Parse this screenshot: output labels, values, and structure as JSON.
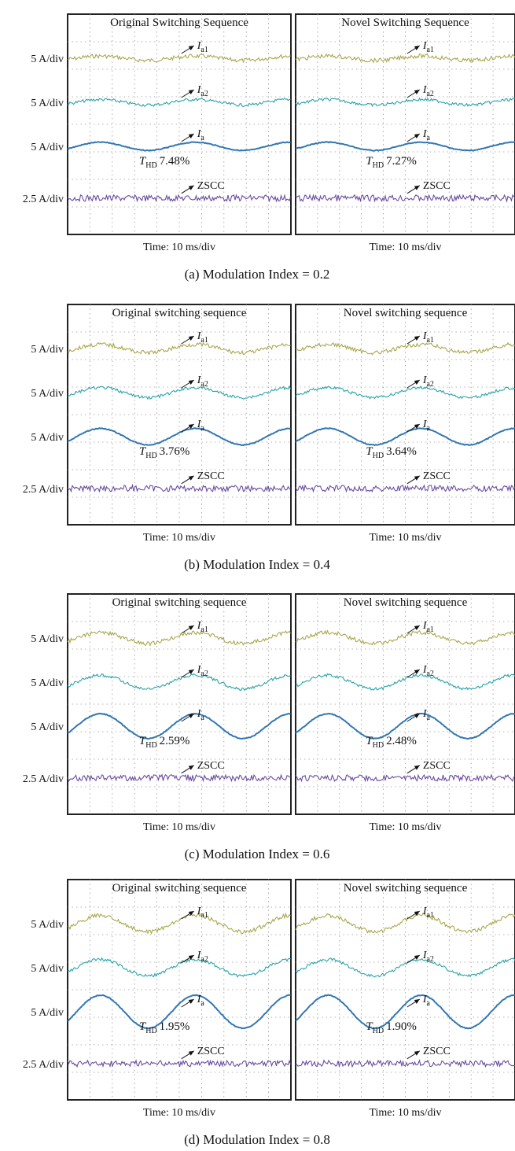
{
  "colors": {
    "Ia1": "#a8a84e",
    "Ia2": "#2aa3a8",
    "Ia": "#3277b2",
    "ZSCC": "#6a4da0",
    "grid": "#9a9a9a",
    "frame": "#222222"
  },
  "chart_data": [
    {
      "type": "line",
      "caption": "(a) Modulation Index = 0.2",
      "y_scales": [
        "5 A/div",
        "5 A/div",
        "5 A/div",
        "2.5 A/div"
      ],
      "panels": [
        {
          "title": "Original Switching Sequence",
          "time_label": "Time: 10 ms/div",
          "thd_prefix": "T",
          "thd_sub": "HD",
          "thd_value": "7.48%"
        },
        {
          "title": "Novel Switching Sequence",
          "time_label": "Time: 10 ms/div",
          "thd_prefix": "T",
          "thd_sub": "HD",
          "thd_value": "7.27%"
        }
      ],
      "series": [
        {
          "name": "I",
          "sub": "a1",
          "amplitude_div": 0.08
        },
        {
          "name": "I",
          "sub": "a2",
          "amplitude_div": 0.1
        },
        {
          "name": "I",
          "sub": "a",
          "amplitude_div": 0.15
        },
        {
          "name": "ZSCC",
          "sub": "",
          "amplitude_div": 0
        }
      ]
    },
    {
      "type": "line",
      "caption": "(b) Modulation Index = 0.4",
      "y_scales": [
        "5 A/div",
        "5 A/div",
        "5 A/div",
        "2.5 A/div"
      ],
      "panels": [
        {
          "title": "Original switching sequence",
          "time_label": "Time: 10 ms/div",
          "thd_prefix": "T",
          "thd_sub": "HD",
          "thd_value": "3.76%"
        },
        {
          "title": "Novel switching sequence",
          "time_label": "Time: 10 ms/div",
          "thd_prefix": "T",
          "thd_sub": "HD",
          "thd_value": "3.64%"
        }
      ],
      "series": [
        {
          "name": "I",
          "sub": "a1",
          "amplitude_div": 0.15
        },
        {
          "name": "I",
          "sub": "a2",
          "amplitude_div": 0.18
        },
        {
          "name": "I",
          "sub": "a",
          "amplitude_div": 0.3
        },
        {
          "name": "ZSCC",
          "sub": "",
          "amplitude_div": 0
        }
      ]
    },
    {
      "type": "line",
      "caption": "(c) Modulation Index = 0.6",
      "y_scales": [
        "5 A/div",
        "5 A/div",
        "5 A/div",
        "2.5 A/div"
      ],
      "panels": [
        {
          "title": "Original switching sequence",
          "time_label": "Time: 10 ms/div",
          "thd_prefix": "T",
          "thd_sub": "HD",
          "thd_value": "2.59%"
        },
        {
          "title": "Novel switching sequence",
          "time_label": "Time: 10 ms/div",
          "thd_prefix": "T",
          "thd_sub": "HD",
          "thd_value": "2.48%"
        }
      ],
      "series": [
        {
          "name": "I",
          "sub": "a1",
          "amplitude_div": 0.2
        },
        {
          "name": "I",
          "sub": "a2",
          "amplitude_div": 0.25
        },
        {
          "name": "I",
          "sub": "a",
          "amplitude_div": 0.45
        },
        {
          "name": "ZSCC",
          "sub": "",
          "amplitude_div": 0
        }
      ]
    },
    {
      "type": "line",
      "caption": "(d) Modulation Index = 0.8",
      "y_scales": [
        "5 A/div",
        "5 A/div",
        "5 A/div",
        "2.5 A/div"
      ],
      "panels": [
        {
          "title": "Original switching sequence",
          "time_label": "Time: 10 ms/div",
          "thd_prefix": "T",
          "thd_sub": "HD",
          "thd_value": "1.95%"
        },
        {
          "title": "Novel switching sequence",
          "time_label": "Time: 10 ms/div",
          "thd_prefix": "T",
          "thd_sub": "HD",
          "thd_value": "1.90%"
        }
      ],
      "series": [
        {
          "name": "I",
          "sub": "a1",
          "amplitude_div": 0.3
        },
        {
          "name": "I",
          "sub": "a2",
          "amplitude_div": 0.3
        },
        {
          "name": "I",
          "sub": "a",
          "amplitude_div": 0.6
        },
        {
          "name": "ZSCC",
          "sub": "",
          "amplitude_div": 0
        }
      ]
    }
  ]
}
